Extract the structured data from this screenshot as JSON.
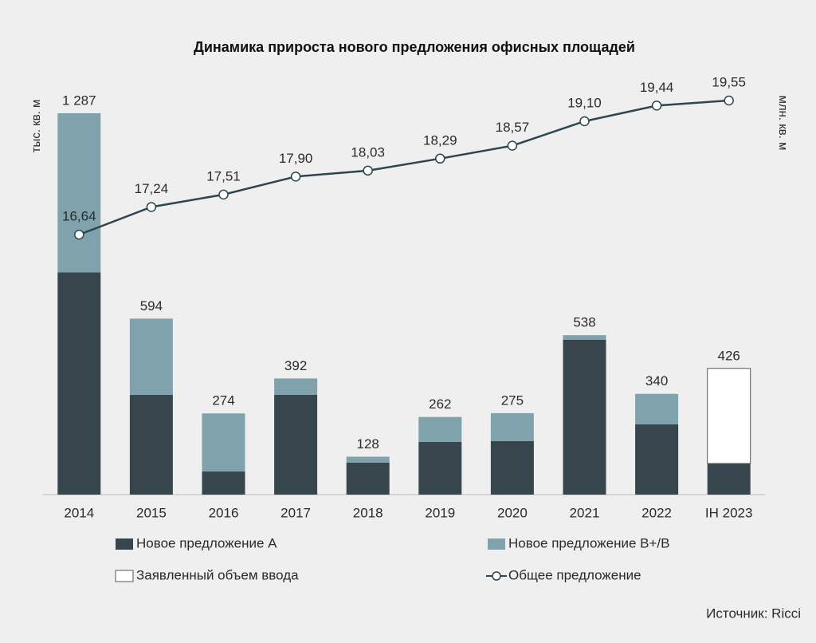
{
  "chart_data": {
    "type": "bar",
    "title": "Динамика прироста нового предложения офисных площадей",
    "y_label": "тыс. кв. м",
    "y2_label": "млн. кв. м",
    "source": "Источник: Ricci",
    "categories": [
      "2014",
      "2015",
      "2016",
      "2017",
      "2018",
      "2019",
      "2020",
      "2021",
      "2022",
      "IH 2023"
    ],
    "ylim": [
      0,
      1400
    ],
    "y2lim": [
      11,
      20
    ],
    "series": [
      {
        "name": "Новое предложение А",
        "color": "#37464d",
        "values": [
          750,
          337,
          78,
          337,
          108,
          178,
          181,
          523,
          237,
          105
        ]
      },
      {
        "name": "Новое предложение В+/В",
        "color": "#7fa2ad",
        "values": [
          537,
          257,
          196,
          55,
          20,
          84,
          94,
          15,
          103,
          null
        ]
      },
      {
        "name": "Заявленный объем ввода",
        "color": "#ffffff",
        "values": [
          null,
          null,
          null,
          null,
          null,
          null,
          null,
          null,
          null,
          321
        ]
      },
      {
        "name": "Общее предложение",
        "color": "#2d4550",
        "type": "line",
        "axis": "y2",
        "values": [
          16.64,
          17.24,
          17.51,
          17.9,
          18.03,
          18.29,
          18.57,
          19.1,
          19.44,
          19.55
        ],
        "value_labels": [
          "16,64",
          "17,24",
          "17,51",
          "17,90",
          "18,03",
          "18,29",
          "18,57",
          "19,10",
          "19,44",
          "19,55"
        ]
      }
    ],
    "totals": {
      "values": [
        1287,
        594,
        274,
        392,
        128,
        262,
        275,
        538,
        340,
        426
      ],
      "value_labels": [
        "1 287",
        "594",
        "274",
        "392",
        "128",
        "262",
        "275",
        "538",
        "340",
        "426"
      ]
    }
  }
}
